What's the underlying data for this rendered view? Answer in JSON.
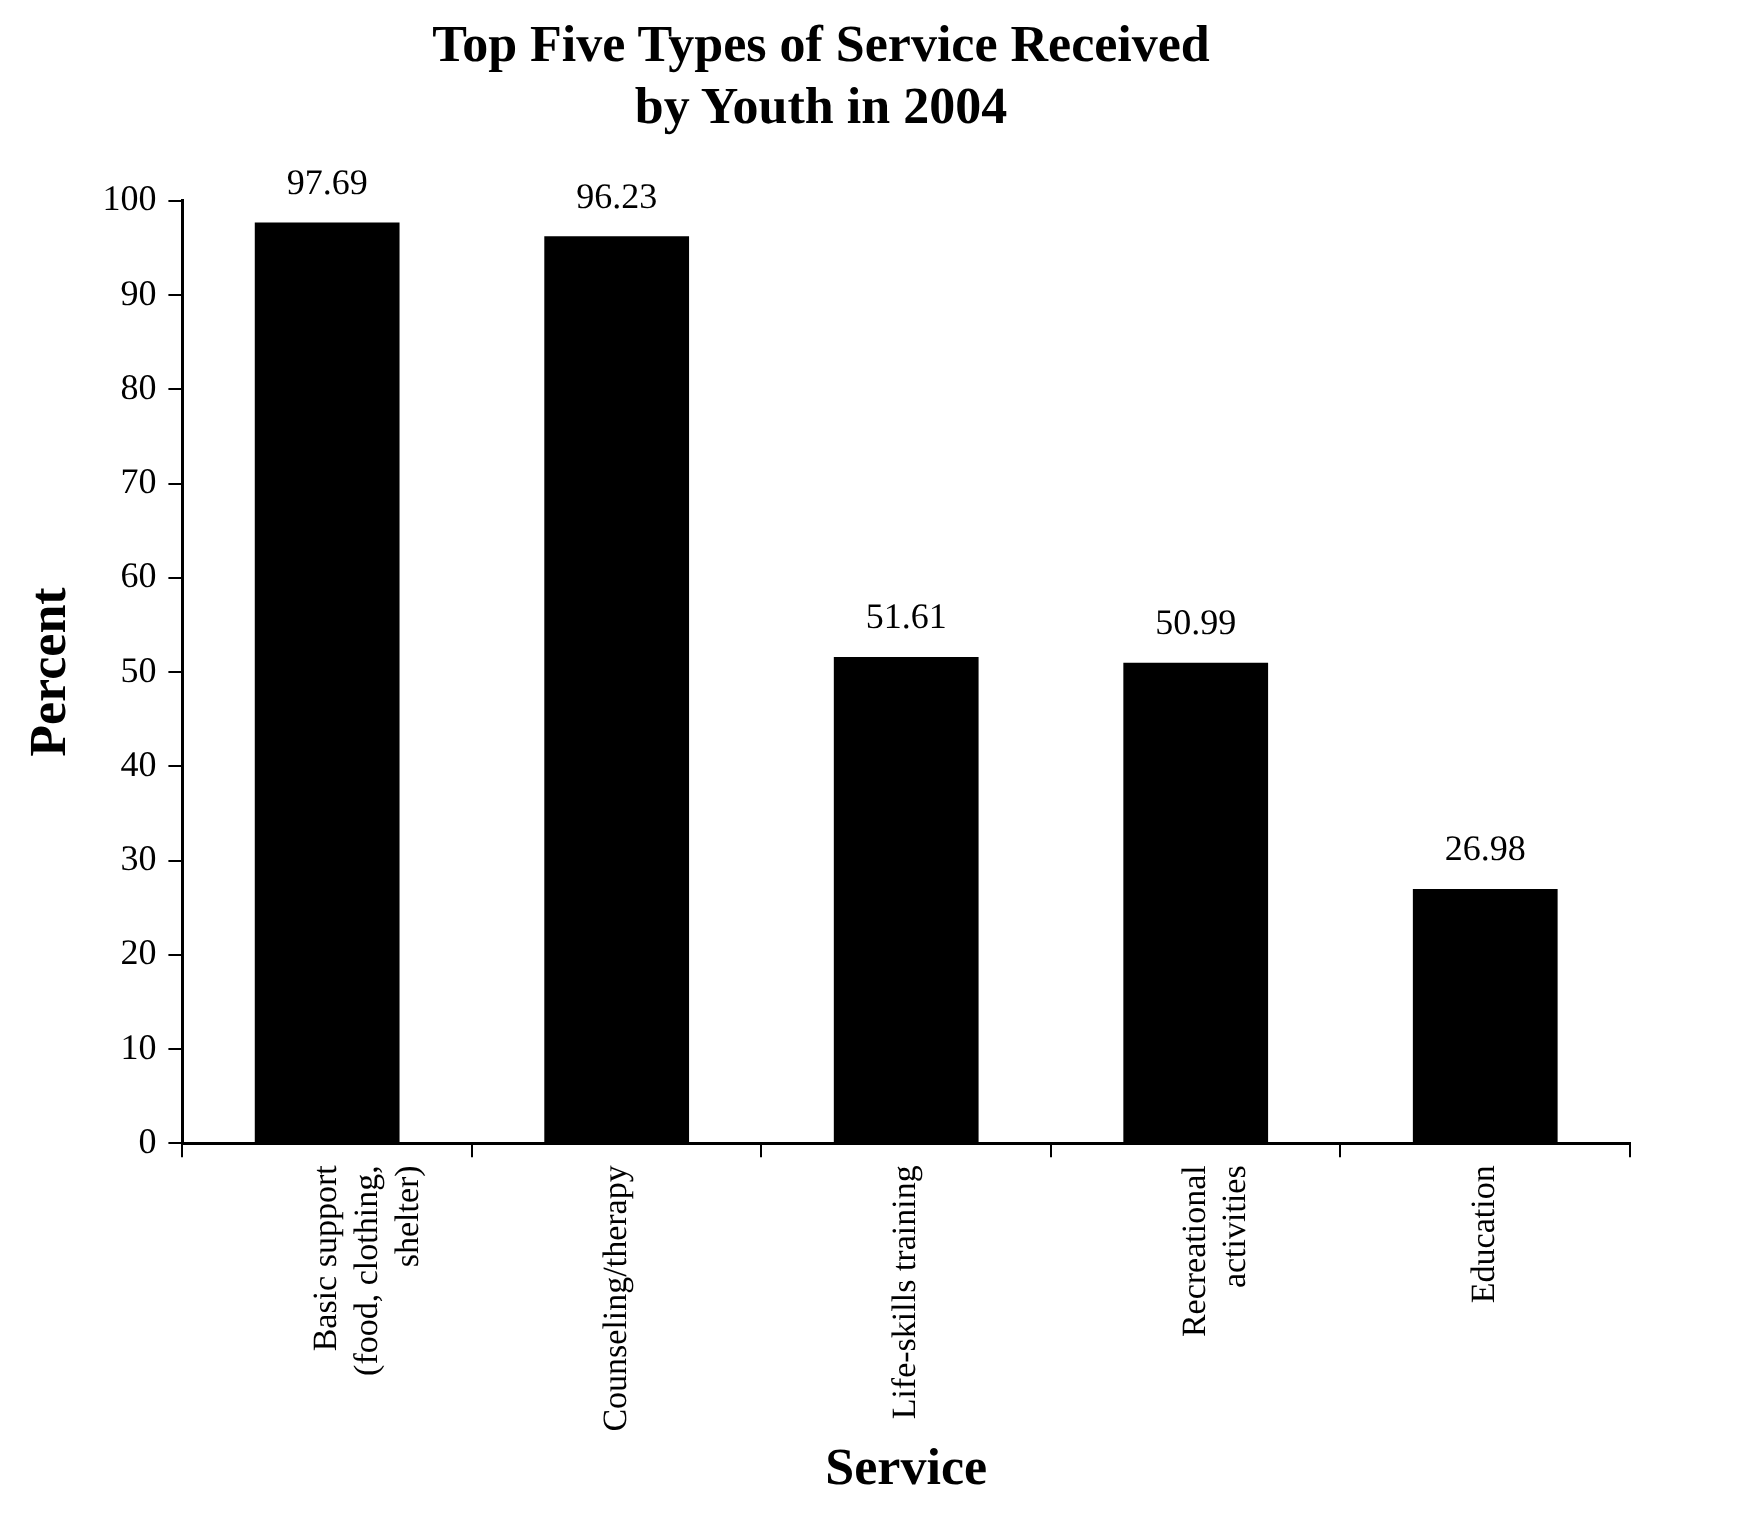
{
  "chart_data": {
    "type": "bar",
    "title": "Top Five Types of Service Received\nby Youth in 2004",
    "xlabel": "Service",
    "ylabel": "Percent",
    "categories": [
      "Basic support\n(food, clothing,\nshelter)",
      "Counseling/therapy",
      "Life-skills training",
      "Recreational\nactivities",
      "Education"
    ],
    "values": [
      97.69,
      96.23,
      51.61,
      50.99,
      26.98
    ],
    "color": "#000000",
    "ylim": [
      0,
      100
    ],
    "yticks": [
      0,
      10,
      20,
      30,
      40,
      50,
      60,
      70,
      80,
      90,
      100
    ],
    "grid": false,
    "data_labels": true,
    "legend": false
  }
}
